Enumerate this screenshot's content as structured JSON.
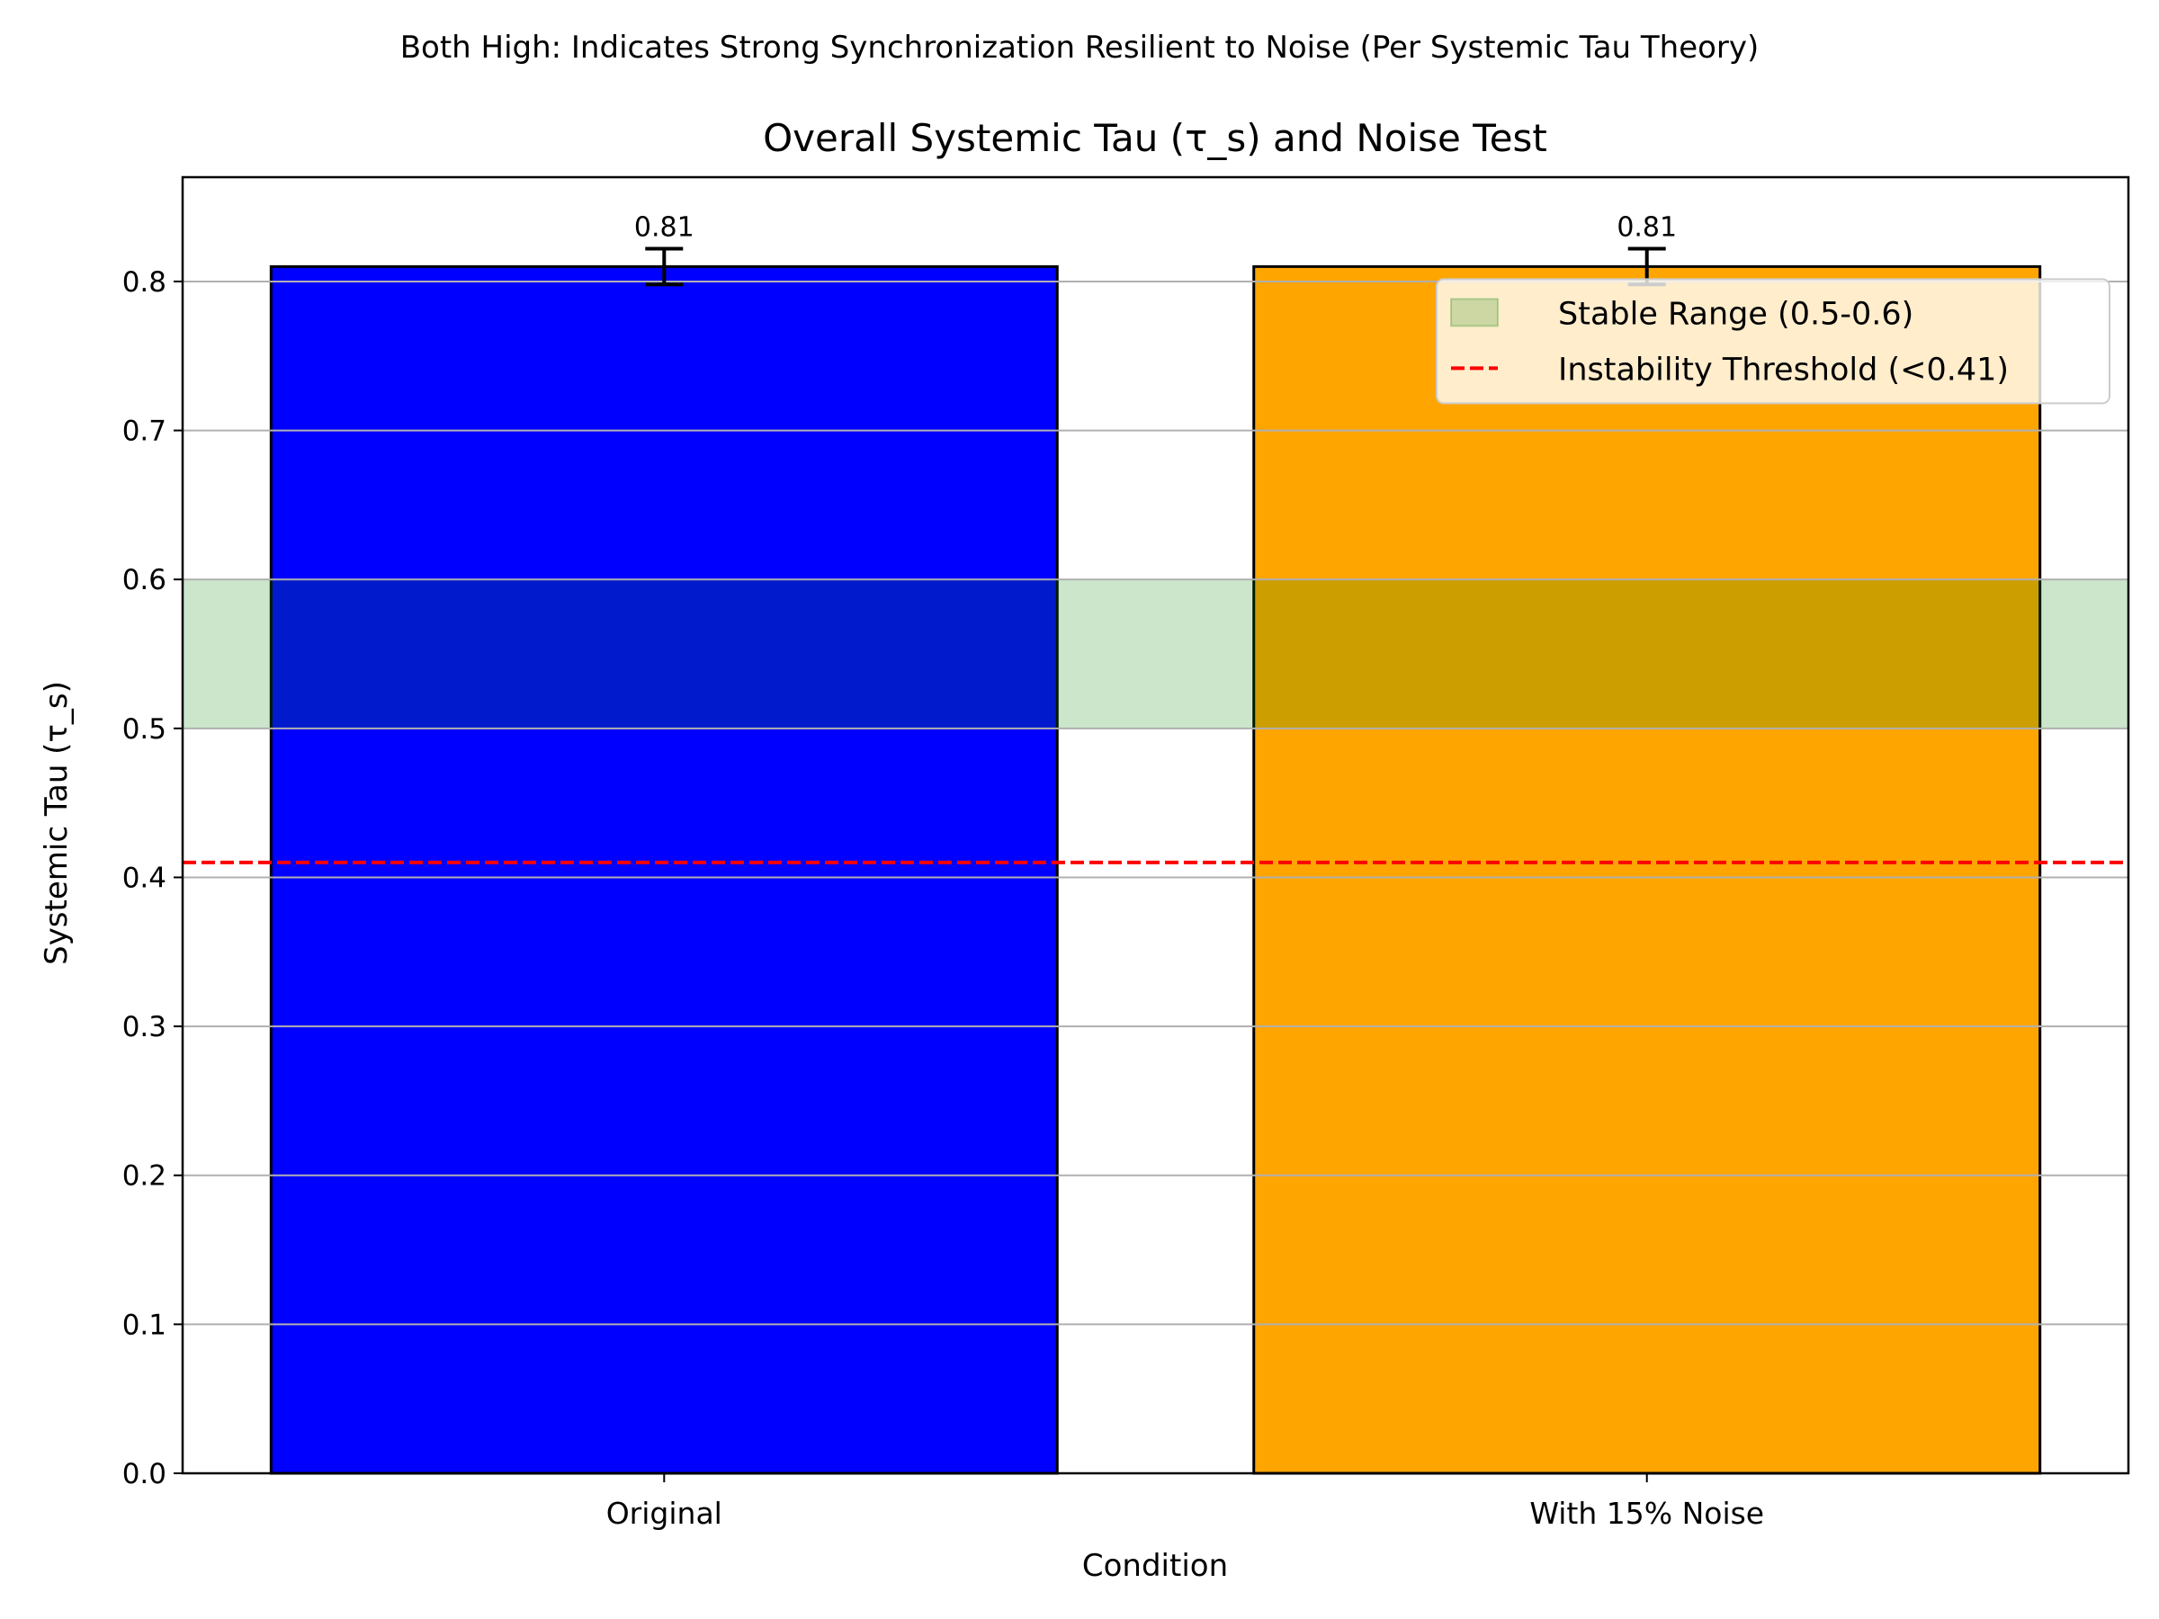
{
  "chart_data": {
    "type": "bar",
    "suptitle": "Both High: Indicates Strong Synchronization Resilient to Noise (Per Systemic Tau Theory)",
    "title": "Overall Systemic Tau (τ_s) and Noise Test",
    "xlabel": "Condition",
    "ylabel": "Systemic Tau (τ_s)",
    "categories": [
      "Original",
      "With 15% Noise"
    ],
    "values": [
      0.81,
      0.81
    ],
    "errors": [
      0.012,
      0.012
    ],
    "data_labels": [
      "0.81",
      "0.81"
    ],
    "bar_colors": [
      "#0000ff",
      "#ffa500"
    ],
    "bar_edge_color": "#000000",
    "ylim": [
      0,
      0.87
    ],
    "xlim": [
      -0.49,
      1.49
    ],
    "yticks": [
      0.0,
      0.1,
      0.2,
      0.3,
      0.4,
      0.5,
      0.6,
      0.7,
      0.8
    ],
    "ytick_labels": [
      "0.0",
      "0.1",
      "0.2",
      "0.3",
      "0.4",
      "0.5",
      "0.6",
      "0.7",
      "0.8"
    ],
    "grid": "y",
    "stable_range": {
      "label": "Stable Range (0.5-0.6)",
      "min": 0.5,
      "max": 0.6,
      "color": "#008000",
      "alpha": 0.2
    },
    "threshold": {
      "label": "Instability Threshold (<0.41)",
      "value": 0.41,
      "color": "#ff0000",
      "style": "dashed"
    },
    "legend": {
      "placement": "upper-right"
    }
  }
}
